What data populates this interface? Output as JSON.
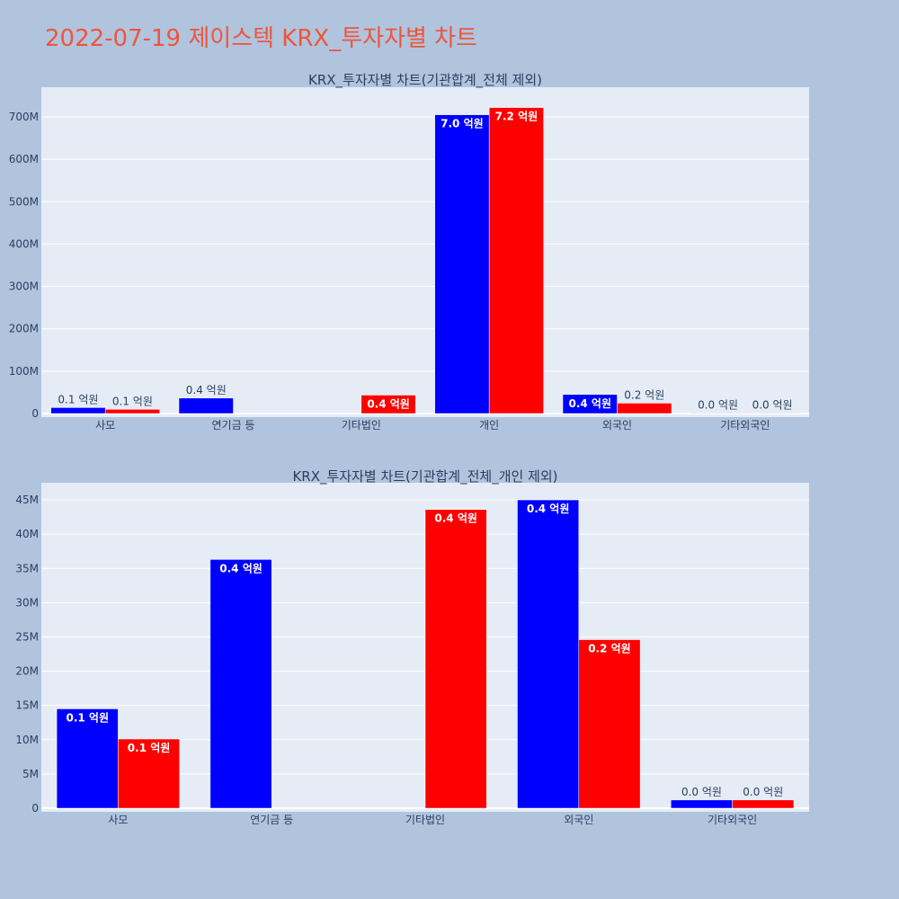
{
  "page": {
    "title": "2022-07-19 제이스텍 KRX_투자자별 차트",
    "background": "#b0c4de"
  },
  "chart_data": [
    {
      "type": "bar",
      "title": "KRX_투자자별 차트(기관합계_전체 제외)",
      "categories": [
        "사모",
        "연기금 등",
        "기타법인",
        "개인",
        "외국인",
        "기타외국인"
      ],
      "ylim": [
        0,
        770000000
      ],
      "yticks": [
        0,
        100000000,
        200000000,
        300000000,
        400000000,
        500000000,
        600000000,
        700000000
      ],
      "ytick_labels": [
        "0",
        "100M",
        "200M",
        "300M",
        "400M",
        "500M",
        "600M",
        "700M"
      ],
      "grid": true,
      "series": [
        {
          "color": "#0000ff",
          "values": [
            14000000,
            36500000,
            null,
            705000000,
            45000000,
            1200000
          ],
          "labels": [
            "0.1 억원",
            "0.4 억원",
            "",
            "7.0 억원",
            "0.4 억원",
            "0.0 억원"
          ]
        },
        {
          "color": "#ff0000",
          "values": [
            10000000,
            null,
            43500000,
            722000000,
            24500000,
            1200000
          ],
          "labels": [
            "0.1 억원",
            "",
            "0.4 억원",
            "7.2 억원",
            "0.2 억원",
            "0.0 억원"
          ]
        }
      ]
    },
    {
      "type": "bar",
      "title": "KRX_투자자별 차트(기관합계_전체_개인 제외)",
      "categories": [
        "사모",
        "연기금 등",
        "기타법인",
        "외국인",
        "기타외국인"
      ],
      "ylim": [
        0,
        47500000
      ],
      "yticks": [
        0,
        5000000,
        10000000,
        15000000,
        20000000,
        25000000,
        30000000,
        35000000,
        40000000,
        45000000
      ],
      "ytick_labels": [
        "0",
        "5M",
        "10M",
        "15M",
        "20M",
        "25M",
        "30M",
        "35M",
        "40M",
        "45M"
      ],
      "grid": true,
      "series": [
        {
          "color": "#0000ff",
          "values": [
            14500000,
            36300000,
            null,
            45000000,
            1200000
          ],
          "labels": [
            "0.1 억원",
            "0.4 억원",
            "",
            "0.4 억원",
            "0.0 억원"
          ]
        },
        {
          "color": "#ff0000",
          "values": [
            10100000,
            null,
            43600000,
            24600000,
            1200000
          ],
          "labels": [
            "0.1 억원",
            "",
            "0.4 억원",
            "0.2 억원",
            "0.0 억원"
          ]
        }
      ]
    }
  ]
}
